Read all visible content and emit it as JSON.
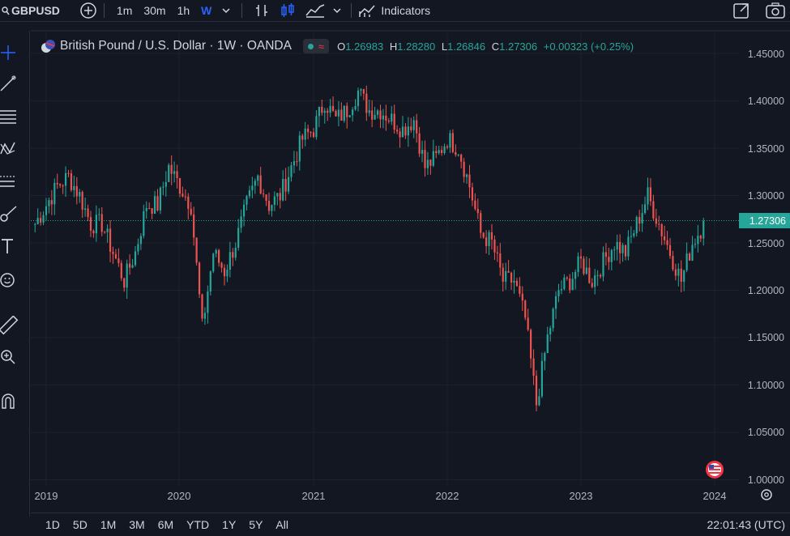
{
  "toolbar": {
    "symbol": "GBPUSD",
    "intervals": [
      "1m",
      "30m",
      "1h",
      "W"
    ],
    "active_interval": "W",
    "indicators_label": "Indicators"
  },
  "legend": {
    "title": "British Pound / U.S. Dollar · 1W · OANDA",
    "open_key": "O",
    "open": "1.26983",
    "high_key": "H",
    "high": "1.28280",
    "low_key": "L",
    "low": "1.26846",
    "close_key": "C",
    "close": "1.27306",
    "change": "+0.00323 (+0.25%)"
  },
  "price_axis": {
    "labels": [
      "1.45000",
      "1.40000",
      "1.35000",
      "1.30000",
      "1.25000",
      "1.20000",
      "1.15000",
      "1.10000",
      "1.05000",
      "1.00000"
    ],
    "last_price_label": "1.27306"
  },
  "time_axis": {
    "labels": [
      "2019",
      "2020",
      "2021",
      "2022",
      "2023",
      "2024"
    ]
  },
  "bottom": {
    "ranges": [
      "1D",
      "5D",
      "1M",
      "3M",
      "6M",
      "YTD",
      "1Y",
      "5Y",
      "All"
    ],
    "clock": "22:01:43 (UTC)"
  },
  "colors": {
    "up": "#26a69a",
    "down": "#ef5350",
    "background": "#131722",
    "accent": "#2962ff"
  },
  "left_tools": [
    "crosshair-icon",
    "trend-line-icon",
    "fib-icon",
    "pattern-icon",
    "forecast-icon",
    "brush-icon",
    "text-icon",
    "emoji-icon",
    "ruler-icon",
    "zoom-icon",
    "magnet-icon"
  ],
  "chart_data": {
    "type": "candlestick",
    "symbol": "GBPUSD",
    "timeframe": "1W",
    "ylim": [
      1.0,
      1.45
    ],
    "x_ticks": [
      "2019",
      "2020",
      "2021",
      "2022",
      "2023",
      "2024"
    ],
    "last_price": 1.27306,
    "points": [
      {
        "date": "2018-12",
        "price": 1.27
      },
      {
        "date": "2019-01",
        "price": 1.29
      },
      {
        "date": "2019-02",
        "price": 1.31
      },
      {
        "date": "2019-03",
        "price": 1.32
      },
      {
        "date": "2019-04",
        "price": 1.3
      },
      {
        "date": "2019-05",
        "price": 1.27
      },
      {
        "date": "2019-06",
        "price": 1.27
      },
      {
        "date": "2019-07",
        "price": 1.24
      },
      {
        "date": "2019-08",
        "price": 1.21
      },
      {
        "date": "2019-09",
        "price": 1.24
      },
      {
        "date": "2019-10",
        "price": 1.29
      },
      {
        "date": "2019-11",
        "price": 1.29
      },
      {
        "date": "2019-12",
        "price": 1.33
      },
      {
        "date": "2020-01",
        "price": 1.31
      },
      {
        "date": "2020-02",
        "price": 1.29
      },
      {
        "date": "2020-03",
        "price": 1.16
      },
      {
        "date": "2020-04",
        "price": 1.24
      },
      {
        "date": "2020-05",
        "price": 1.22
      },
      {
        "date": "2020-06",
        "price": 1.25
      },
      {
        "date": "2020-07",
        "price": 1.29
      },
      {
        "date": "2020-08",
        "price": 1.32
      },
      {
        "date": "2020-09",
        "price": 1.29
      },
      {
        "date": "2020-10",
        "price": 1.3
      },
      {
        "date": "2020-11",
        "price": 1.33
      },
      {
        "date": "2020-12",
        "price": 1.36
      },
      {
        "date": "2021-01",
        "price": 1.37
      },
      {
        "date": "2021-02",
        "price": 1.4
      },
      {
        "date": "2021-03",
        "price": 1.38
      },
      {
        "date": "2021-04",
        "price": 1.39
      },
      {
        "date": "2021-05",
        "price": 1.41
      },
      {
        "date": "2021-06",
        "price": 1.39
      },
      {
        "date": "2021-07",
        "price": 1.39
      },
      {
        "date": "2021-08",
        "price": 1.38
      },
      {
        "date": "2021-09",
        "price": 1.37
      },
      {
        "date": "2021-10",
        "price": 1.38
      },
      {
        "date": "2021-11",
        "price": 1.33
      },
      {
        "date": "2021-12",
        "price": 1.34
      },
      {
        "date": "2022-01",
        "price": 1.36
      },
      {
        "date": "2022-02",
        "price": 1.35
      },
      {
        "date": "2022-03",
        "price": 1.31
      },
      {
        "date": "2022-04",
        "price": 1.26
      },
      {
        "date": "2022-05",
        "price": 1.25
      },
      {
        "date": "2022-06",
        "price": 1.21
      },
      {
        "date": "2022-07",
        "price": 1.21
      },
      {
        "date": "2022-08",
        "price": 1.17
      },
      {
        "date": "2022-09",
        "price": 1.08
      },
      {
        "date": "2022-10",
        "price": 1.15
      },
      {
        "date": "2022-11",
        "price": 1.2
      },
      {
        "date": "2022-12",
        "price": 1.21
      },
      {
        "date": "2023-01",
        "price": 1.23
      },
      {
        "date": "2023-02",
        "price": 1.21
      },
      {
        "date": "2023-03",
        "price": 1.23
      },
      {
        "date": "2023-04",
        "price": 1.25
      },
      {
        "date": "2023-05",
        "price": 1.24
      },
      {
        "date": "2023-06",
        "price": 1.27
      },
      {
        "date": "2023-07",
        "price": 1.3
      },
      {
        "date": "2023-08",
        "price": 1.27
      },
      {
        "date": "2023-09",
        "price": 1.24
      },
      {
        "date": "2023-10",
        "price": 1.21
      },
      {
        "date": "2023-11",
        "price": 1.25
      },
      {
        "date": "2023-12",
        "price": 1.27
      }
    ]
  }
}
